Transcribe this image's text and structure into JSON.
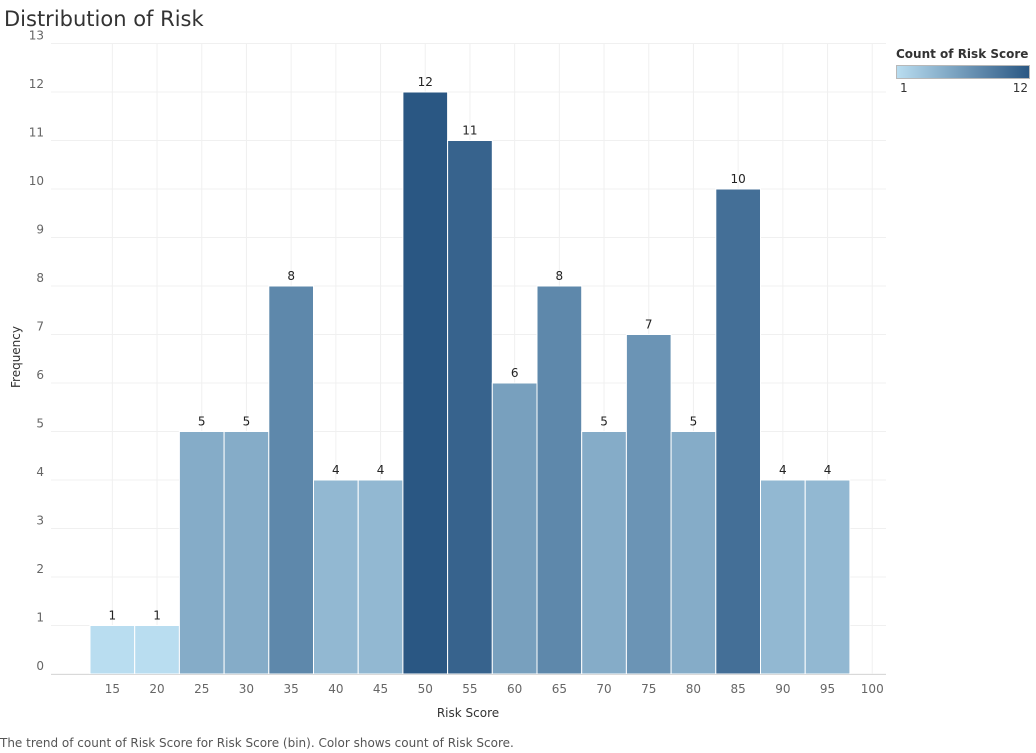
{
  "chart_data": {
    "type": "bar",
    "title": "Distribution of Risk",
    "xlabel": "Risk Score",
    "ylabel": "Frequency",
    "x_bins": [
      15,
      20,
      25,
      30,
      35,
      40,
      45,
      50,
      55,
      60,
      65,
      70,
      75,
      80,
      85,
      90,
      95
    ],
    "values": [
      1,
      1,
      5,
      5,
      8,
      4,
      4,
      12,
      11,
      6,
      8,
      5,
      7,
      5,
      10,
      4,
      4
    ],
    "x_ticks": [
      "15",
      "20",
      "25",
      "30",
      "35",
      "40",
      "45",
      "50",
      "55",
      "60",
      "65",
      "70",
      "75",
      "80",
      "85",
      "90",
      "95",
      "100"
    ],
    "y_ticks": [
      "0",
      "1",
      "2",
      "3",
      "4",
      "5",
      "6",
      "7",
      "8",
      "9",
      "10",
      "11",
      "12",
      "13"
    ],
    "ylim": [
      0,
      13
    ],
    "grid": true,
    "legend": {
      "title": "Count of Risk Score",
      "min_label": "1",
      "max_label": "12",
      "color_low": "#b9ddf0",
      "color_high": "#2a5783",
      "placement": "top-right"
    }
  },
  "caption": "The trend of count of Risk Score for Risk Score (bin).  Color shows count of Risk Score."
}
